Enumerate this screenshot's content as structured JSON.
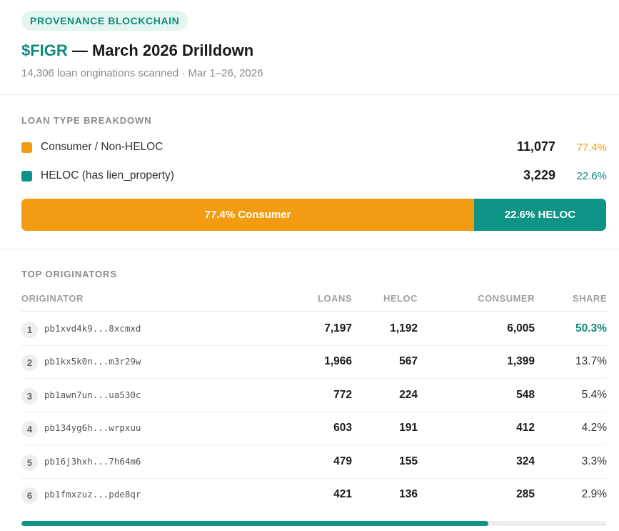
{
  "header": {
    "badge": "PROVENANCE BLOCKCHAIN",
    "ticker": "$FIGR",
    "title_rest": " — March 2026 Drilldown",
    "subtitle": "14,306 loan originations scanned · Mar 1–26, 2026"
  },
  "colors": {
    "consumer": "#f39c12",
    "heloc": "#0e9484",
    "accent": "#0e8c7b"
  },
  "breakdown": {
    "label": "LOAN TYPE BREAKDOWN",
    "items": [
      {
        "name": "Consumer / Non-HELOC",
        "count": "11,077",
        "pct": "77.4%",
        "share": 77.4
      },
      {
        "name": "HELOC (has lien_property)",
        "count": "3,229",
        "pct": "22.6%",
        "share": 22.6
      }
    ],
    "bar_labels": [
      "77.4% Consumer",
      "22.6% HELOC"
    ]
  },
  "originators": {
    "label": "TOP ORIGINATORS",
    "columns": [
      "ORIGINATOR",
      "LOANS",
      "HELOC",
      "CONSUMER",
      "SHARE"
    ],
    "rows": [
      {
        "rank": "1",
        "address": "pb1xvd4k9...8xcmxd",
        "loans": "7,197",
        "heloc": "1,192",
        "consumer": "6,005",
        "share": "50.3%"
      },
      {
        "rank": "2",
        "address": "pb1kx5k0n...m3r29w",
        "loans": "1,966",
        "heloc": "567",
        "consumer": "1,399",
        "share": "13.7%"
      },
      {
        "rank": "3",
        "address": "pb1awn7un...ua530c",
        "loans": "772",
        "heloc": "224",
        "consumer": "548",
        "share": "5.4%"
      },
      {
        "rank": "4",
        "address": "pb134yg6h...wrpxuu",
        "loans": "603",
        "heloc": "191",
        "consumer": "412",
        "share": "4.2%"
      },
      {
        "rank": "5",
        "address": "pb16j3hxh...7h64m6",
        "loans": "479",
        "heloc": "155",
        "consumer": "324",
        "share": "3.3%"
      },
      {
        "rank": "6",
        "address": "pb1fmxzuz...pde8qr",
        "loans": "421",
        "heloc": "136",
        "consumer": "285",
        "share": "2.9%"
      }
    ]
  },
  "scroll_progress": 0.797
}
